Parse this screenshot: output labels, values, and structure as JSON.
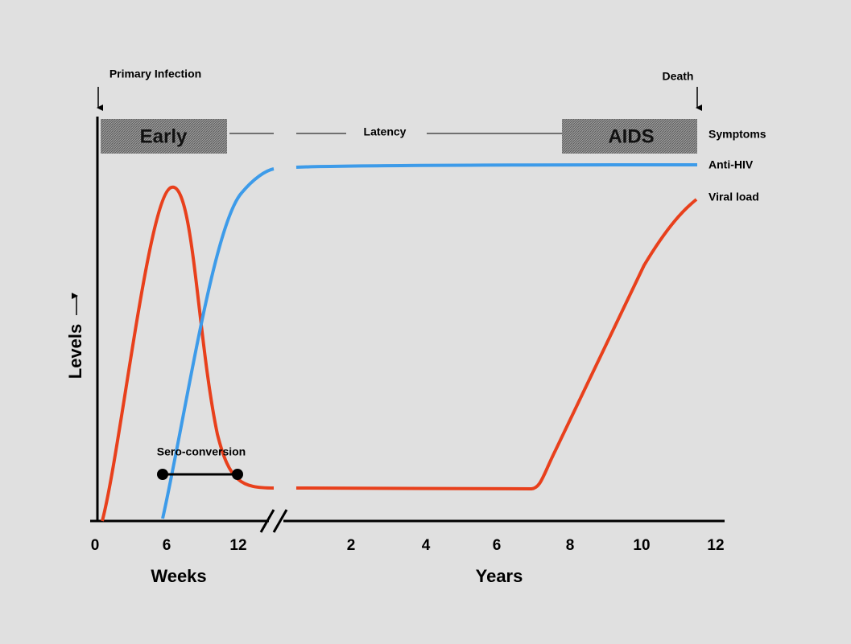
{
  "labels": {
    "primary_infection": "Primary Infection",
    "death": "Death",
    "early": "Early",
    "latency": "Latency",
    "aids": "AIDS",
    "symptoms": "Symptoms",
    "anti_hiv": "Anti-HIV",
    "viral_load": "Viral load",
    "levels": "Levels",
    "sero_conversion": "Sero-conversion"
  },
  "x_axis": {
    "weeks_ticks": [
      "0",
      "6",
      "12"
    ],
    "weeks_label": "Weeks",
    "years_ticks": [
      "2",
      "4",
      "6",
      "8",
      "10",
      "12"
    ],
    "years_label": "Years"
  }
}
